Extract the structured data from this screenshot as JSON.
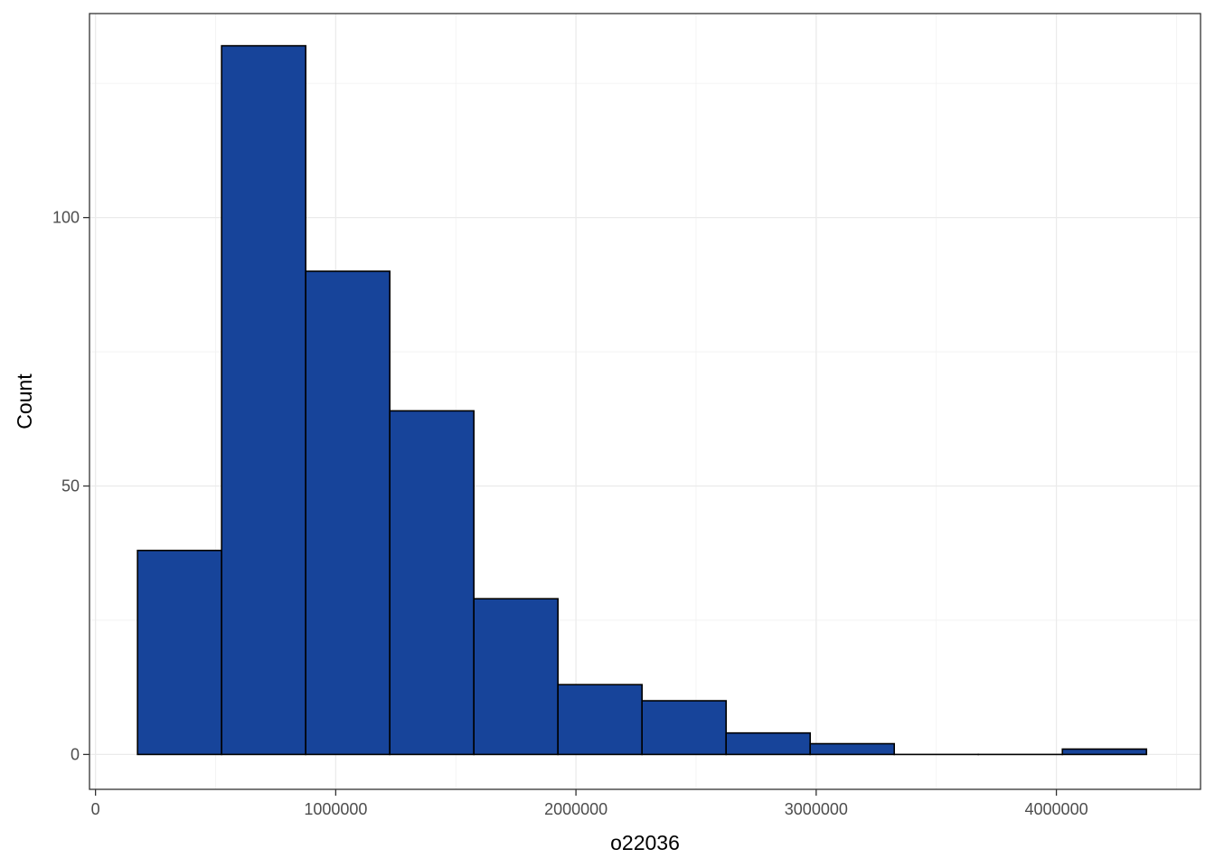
{
  "chart_data": {
    "type": "bar",
    "subtype": "histogram",
    "xlabel": "o22036",
    "ylabel": "Count",
    "xlim": [
      -25000,
      4600000
    ],
    "ylim": [
      -6.5,
      138
    ],
    "x_ticks": [
      0,
      1000000,
      2000000,
      3000000,
      4000000
    ],
    "x_tick_labels": [
      "0",
      "1000000",
      "2000000",
      "3000000",
      "4000000"
    ],
    "y_ticks": [
      0,
      50,
      100
    ],
    "y_tick_labels": [
      "0",
      "50",
      "100"
    ],
    "bin_edges": [
      175000,
      525000,
      875000,
      1225000,
      1575000,
      1925000,
      2275000,
      2625000,
      2975000,
      3325000,
      3675000,
      4025000,
      4375000
    ],
    "values": [
      38,
      132,
      90,
      64,
      29,
      13,
      10,
      4,
      2,
      0,
      0,
      1
    ],
    "bar_color": "#17449a",
    "bar_outline": "#000000",
    "grid": true,
    "theme": "bw"
  }
}
